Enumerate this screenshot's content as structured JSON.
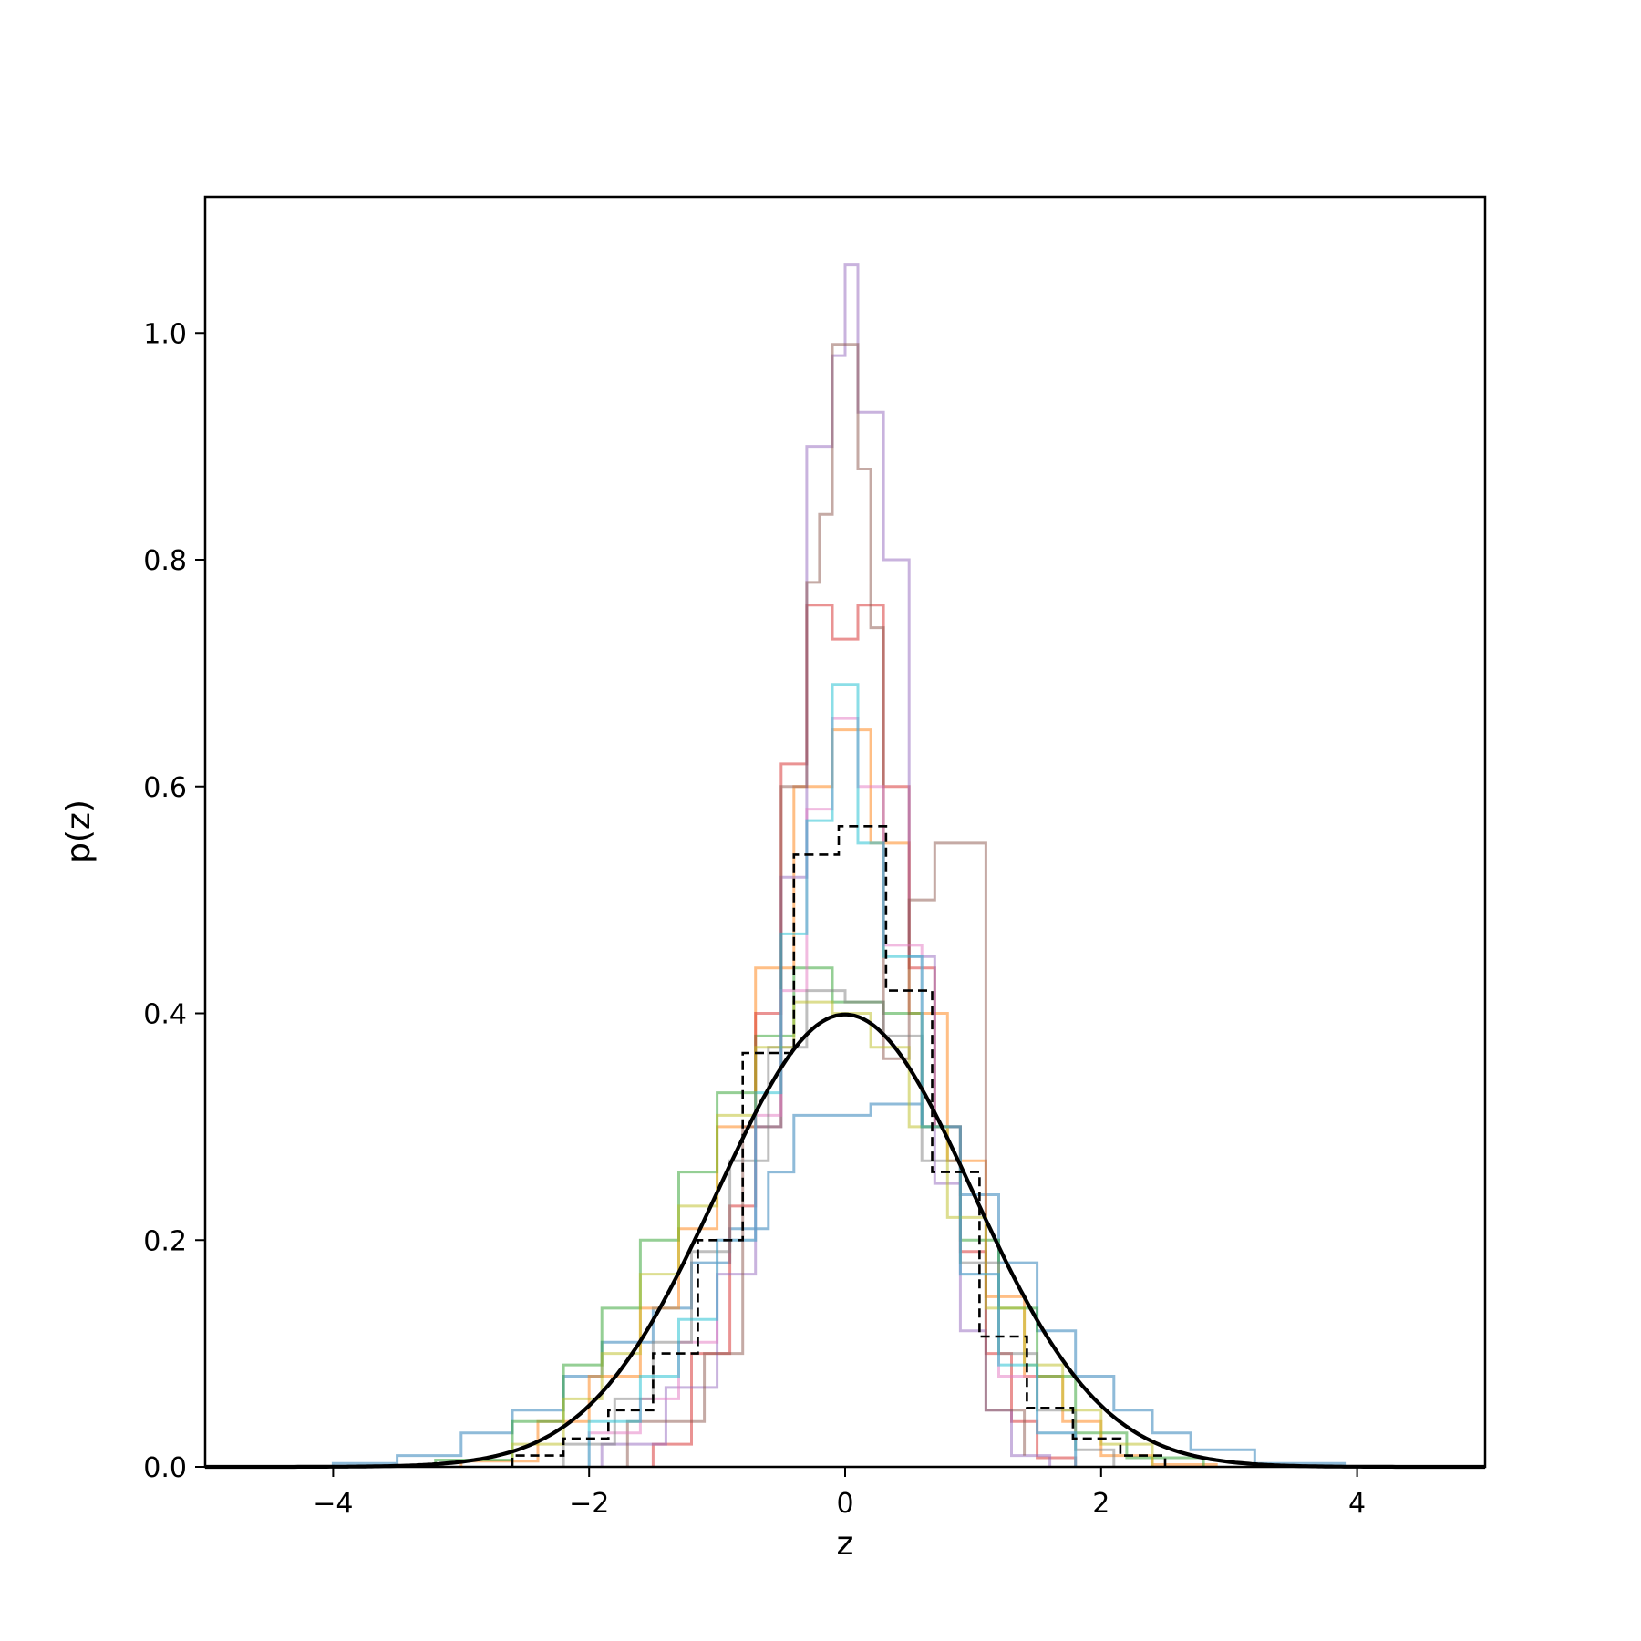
{
  "chart_data": {
    "type": "line",
    "xlabel": "z",
    "ylabel": "p(z)",
    "xlim": [
      -5,
      5
    ],
    "ylim": [
      0,
      1.12
    ],
    "xticks": [
      -4,
      -2,
      0,
      2,
      4
    ],
    "xtick_labels": [
      "−4",
      "−2",
      "0",
      "2",
      "4"
    ],
    "yticks": [
      0.0,
      0.2,
      0.4,
      0.6,
      0.8,
      1.0
    ],
    "ytick_labels": [
      "0.0",
      "0.2",
      "0.4",
      "0.6",
      "0.8",
      "1.0"
    ],
    "grid": false,
    "legend": "none",
    "histograms": [
      {
        "color": "#1f77b4",
        "edges": [
          -4.0,
          -3.5,
          -3.0,
          -2.6,
          -2.2,
          -1.9,
          -1.5,
          -1.2,
          -0.9,
          -0.6,
          -0.4,
          0.2,
          0.6,
          0.9,
          1.2,
          1.5,
          1.8,
          2.1,
          2.4,
          2.7,
          3.2,
          3.9
        ],
        "values": [
          0.003,
          0.01,
          0.03,
          0.05,
          0.08,
          0.11,
          0.14,
          0.18,
          0.21,
          0.26,
          0.31,
          0.32,
          0.3,
          0.24,
          0.18,
          0.12,
          0.08,
          0.05,
          0.03,
          0.015,
          0.003
        ]
      },
      {
        "color": "#ff7f0e",
        "edges": [
          -3.0,
          -2.4,
          -2.0,
          -1.6,
          -1.3,
          -1.0,
          -0.7,
          -0.4,
          -0.1,
          0.2,
          0.5,
          0.8,
          1.1,
          1.4,
          1.7,
          2.0,
          2.4,
          2.9
        ],
        "values": [
          0.005,
          0.04,
          0.08,
          0.14,
          0.21,
          0.3,
          0.44,
          0.6,
          0.65,
          0.55,
          0.4,
          0.27,
          0.15,
          0.08,
          0.04,
          0.01,
          0.002
        ]
      },
      {
        "color": "#2ca02c",
        "edges": [
          -3.2,
          -2.6,
          -2.2,
          -1.9,
          -1.6,
          -1.3,
          -1.0,
          -0.7,
          -0.4,
          -0.1,
          0.3,
          0.6,
          0.9,
          1.2,
          1.5,
          1.8,
          2.2,
          2.8
        ],
        "values": [
          0.006,
          0.04,
          0.09,
          0.14,
          0.2,
          0.26,
          0.33,
          0.38,
          0.44,
          0.41,
          0.4,
          0.3,
          0.2,
          0.14,
          0.08,
          0.03,
          0.008
        ]
      },
      {
        "color": "#d62728",
        "edges": [
          -1.5,
          -1.2,
          -0.9,
          -0.7,
          -0.5,
          -0.3,
          -0.1,
          0.1,
          0.3,
          0.5,
          0.7,
          0.9,
          1.1,
          1.3,
          1.5,
          1.8
        ],
        "values": [
          0.02,
          0.1,
          0.23,
          0.4,
          0.62,
          0.76,
          0.73,
          0.76,
          0.6,
          0.44,
          0.3,
          0.19,
          0.1,
          0.04,
          0.008
        ]
      },
      {
        "color": "#9467bd",
        "edges": [
          -1.9,
          -1.4,
          -1.0,
          -0.7,
          -0.5,
          -0.3,
          -0.1,
          0.0,
          0.1,
          0.3,
          0.5,
          0.7,
          0.9,
          1.1,
          1.3,
          1.6
        ],
        "values": [
          0.02,
          0.07,
          0.17,
          0.3,
          0.52,
          0.9,
          0.98,
          1.06,
          0.93,
          0.8,
          0.45,
          0.25,
          0.12,
          0.05,
          0.01
        ]
      },
      {
        "color": "#8c564b",
        "edges": [
          -1.7,
          -1.1,
          -0.8,
          -0.5,
          -0.3,
          -0.2,
          -0.1,
          0.1,
          0.2,
          0.3,
          0.5,
          0.7,
          1.1,
          1.4
        ],
        "values": [
          0.04,
          0.1,
          0.3,
          0.6,
          0.78,
          0.84,
          0.99,
          0.88,
          0.74,
          0.36,
          0.5,
          0.55,
          0.05,
          0.01
        ]
      },
      {
        "color": "#e377c2",
        "edges": [
          -2.0,
          -1.6,
          -1.3,
          -1.0,
          -0.7,
          -0.5,
          -0.3,
          -0.1,
          0.1,
          0.3,
          0.6,
          0.9,
          1.2,
          1.5,
          1.8
        ],
        "values": [
          0.03,
          0.06,
          0.11,
          0.2,
          0.31,
          0.42,
          0.58,
          0.66,
          0.6,
          0.46,
          0.3,
          0.17,
          0.08,
          0.03
        ]
      },
      {
        "color": "#7f7f7f",
        "edges": [
          -2.2,
          -1.8,
          -1.5,
          -1.2,
          -0.9,
          -0.6,
          -0.3,
          0.0,
          0.3,
          0.6,
          0.9,
          1.2,
          1.5,
          1.8,
          2.1
        ],
        "values": [
          0.02,
          0.06,
          0.11,
          0.19,
          0.27,
          0.37,
          0.42,
          0.41,
          0.38,
          0.27,
          0.18,
          0.1,
          0.05,
          0.015
        ]
      },
      {
        "color": "#bcbd22",
        "edges": [
          -2.6,
          -2.2,
          -1.9,
          -1.6,
          -1.3,
          -1.0,
          -0.7,
          -0.4,
          -0.1,
          0.2,
          0.5,
          0.8,
          1.1,
          1.4,
          1.7,
          2.0,
          2.4
        ],
        "values": [
          0.02,
          0.06,
          0.1,
          0.17,
          0.23,
          0.31,
          0.37,
          0.41,
          0.4,
          0.37,
          0.3,
          0.22,
          0.14,
          0.09,
          0.05,
          0.02
        ]
      },
      {
        "color": "#17becf",
        "edges": [
          -2.0,
          -1.6,
          -1.3,
          -1.0,
          -0.7,
          -0.5,
          -0.3,
          -0.1,
          0.1,
          0.3,
          0.6,
          0.9,
          1.2,
          1.5,
          1.8
        ],
        "values": [
          0.04,
          0.08,
          0.13,
          0.2,
          0.33,
          0.47,
          0.57,
          0.69,
          0.55,
          0.45,
          0.3,
          0.17,
          0.09,
          0.03
        ]
      }
    ],
    "mean_histogram": {
      "edges": [
        -2.6,
        -2.2,
        -1.85,
        -1.5,
        -1.15,
        -0.8,
        -0.4,
        -0.05,
        0.32,
        0.68,
        1.05,
        1.42,
        1.78,
        2.15,
        2.5
      ],
      "values": [
        0.01,
        0.025,
        0.05,
        0.1,
        0.2,
        0.365,
        0.54,
        0.565,
        0.42,
        0.26,
        0.115,
        0.052,
        0.025,
        0.01
      ]
    },
    "normal_curve": {
      "mean": 0,
      "std": 1,
      "peak": 0.399
    }
  }
}
